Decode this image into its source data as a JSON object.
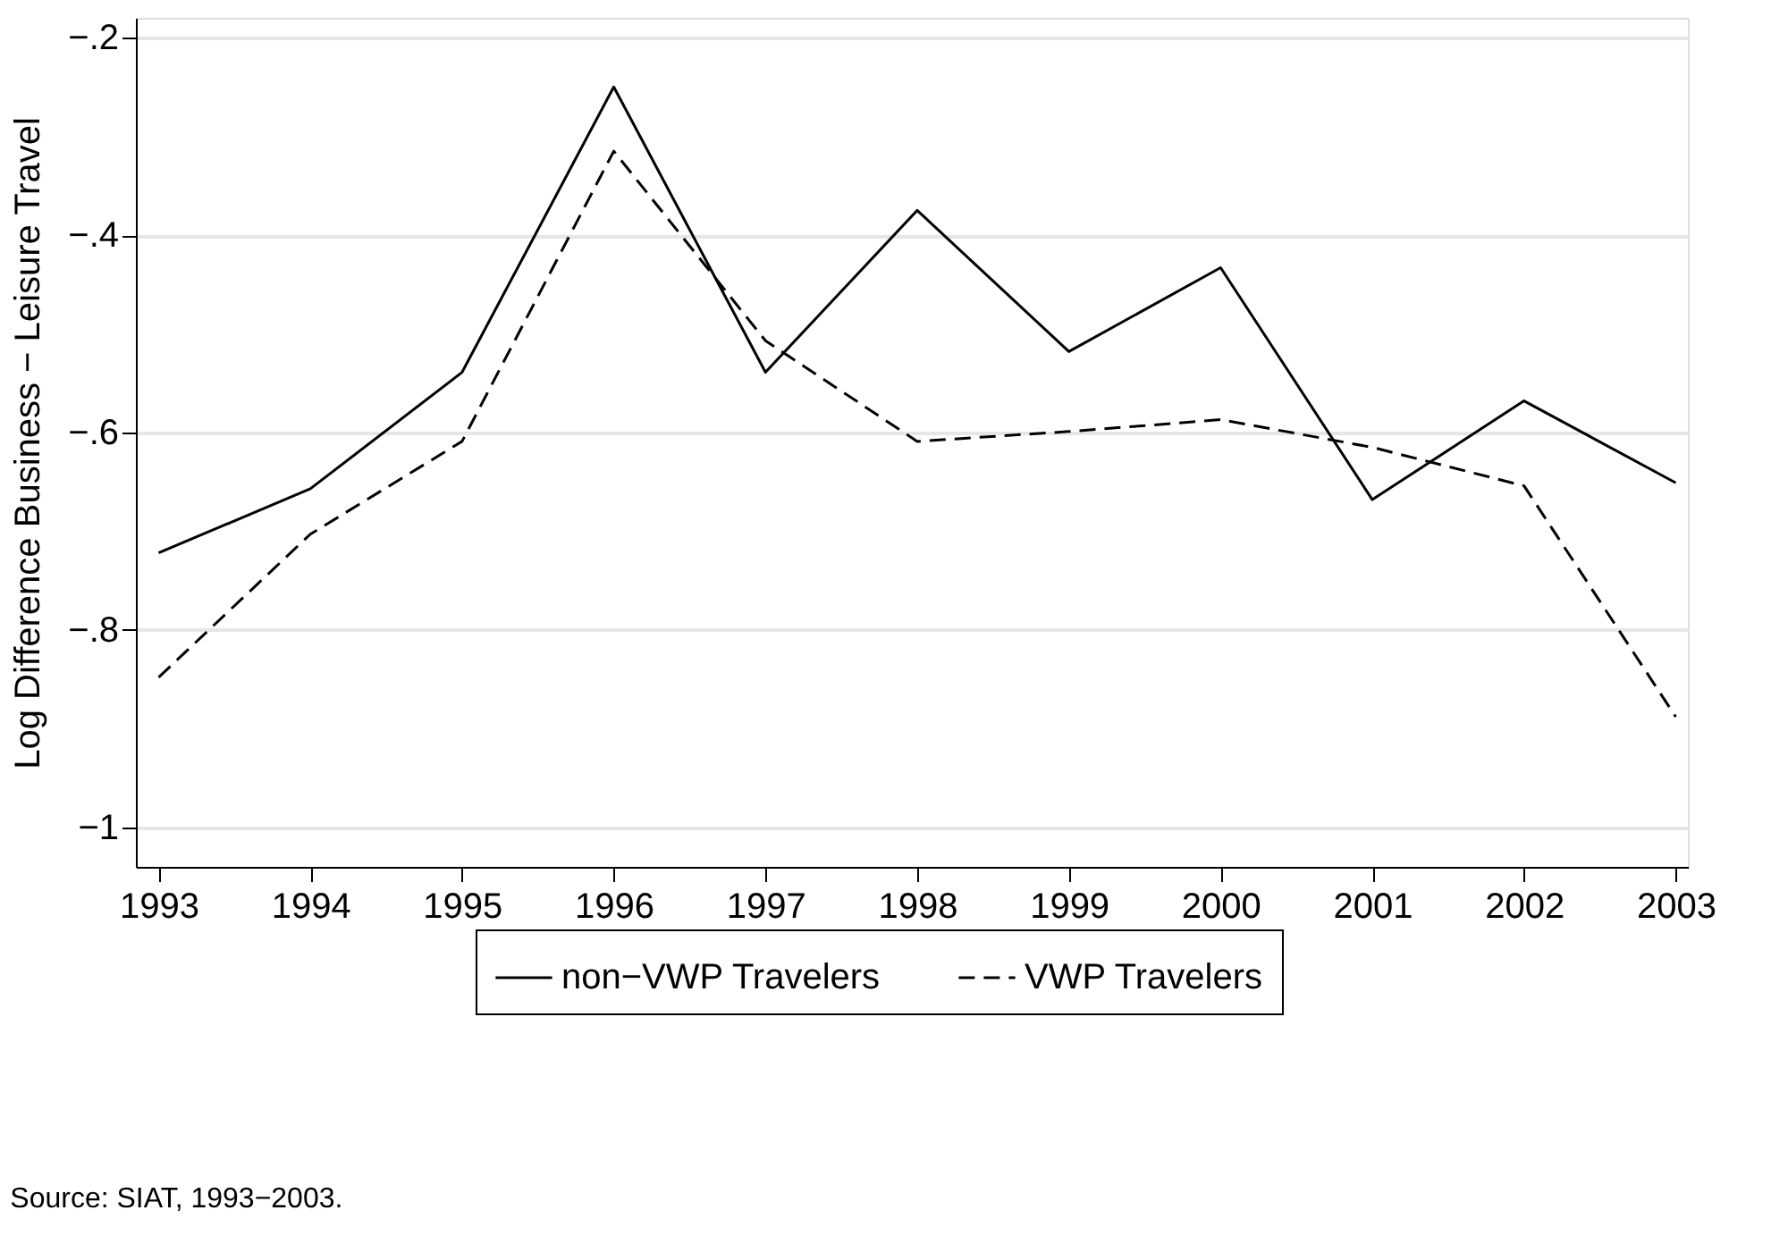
{
  "chart_data": {
    "type": "line",
    "ylabel": "Log Difference Business − Leisure Travel",
    "x": [
      1993,
      1994,
      1995,
      1996,
      1997,
      1998,
      1999,
      2000,
      2001,
      2002,
      2003
    ],
    "xlim": [
      1992.85,
      2003.08
    ],
    "xticks": [
      1993,
      1994,
      1995,
      1996,
      1997,
      1998,
      1999,
      2000,
      2001,
      2002,
      2003
    ],
    "ylim": [
      -1.04,
      -0.18
    ],
    "yticks": [
      {
        "value": -1,
        "label": "−1"
      },
      {
        "value": -0.8,
        "label": "−.8"
      },
      {
        "value": -0.6,
        "label": "−.6"
      },
      {
        "value": -0.4,
        "label": "−.4"
      },
      {
        "value": -0.2,
        "label": "−.2"
      }
    ],
    "grid": "y",
    "legend": "bottom",
    "marker": "none",
    "series": [
      {
        "name": "non−VWP Travelers",
        "color": "#000000",
        "line_style": "solid",
        "values": [
          -0.722,
          -0.657,
          -0.539,
          -0.25,
          -0.539,
          -0.375,
          -0.518,
          -0.433,
          -0.668,
          -0.568,
          -0.651
        ]
      },
      {
        "name": "VWP Travelers",
        "color": "#000000",
        "line_style": "dashed",
        "values": [
          -0.848,
          -0.703,
          -0.609,
          -0.315,
          -0.507,
          -0.609,
          -0.599,
          -0.587,
          -0.615,
          -0.654,
          -0.888
        ]
      }
    ],
    "annotations": [
      "Source:  SIAT, 1993−2003."
    ]
  }
}
